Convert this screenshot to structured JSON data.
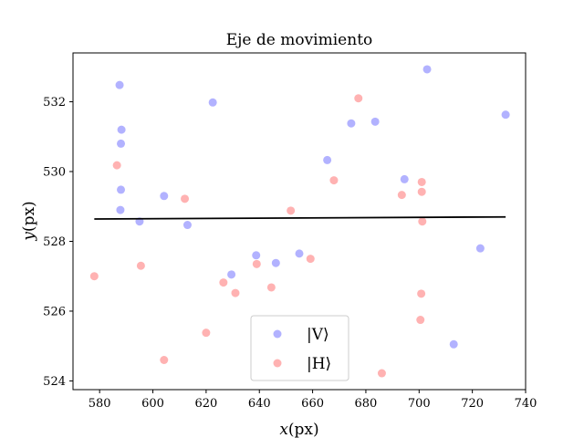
{
  "chart_data": {
    "type": "scatter",
    "title": "Eje de movimiento",
    "xlabel_var": "x",
    "xlabel_unit": "(px)",
    "ylabel_var": "y",
    "ylabel_unit": "(px)",
    "xlim": [
      570,
      740
    ],
    "ylim": [
      523.75,
      533.4
    ],
    "xticks": [
      580,
      600,
      620,
      640,
      660,
      680,
      700,
      720,
      740
    ],
    "yticks": [
      524,
      526,
      528,
      530,
      532
    ],
    "grid": false,
    "legend_position": "lower center",
    "series": [
      {
        "name": "|V⟩",
        "color": "#7f7fff",
        "points": [
          [
            587.5,
            532.48
          ],
          [
            587.8,
            528.9
          ],
          [
            588.0,
            529.48
          ],
          [
            588.0,
            530.8
          ],
          [
            588.2,
            531.2
          ],
          [
            595.0,
            528.57
          ],
          [
            604.2,
            529.3
          ],
          [
            613.0,
            528.47
          ],
          [
            622.5,
            531.98
          ],
          [
            629.5,
            527.05
          ],
          [
            638.8,
            527.6
          ],
          [
            646.2,
            527.38
          ],
          [
            655.0,
            527.65
          ],
          [
            665.5,
            530.33
          ],
          [
            674.5,
            531.38
          ],
          [
            683.5,
            531.43
          ],
          [
            694.5,
            529.78
          ],
          [
            703.0,
            532.93
          ],
          [
            713.0,
            525.05
          ],
          [
            723.0,
            527.8
          ],
          [
            732.5,
            531.63
          ]
        ]
      },
      {
        "name": "|H⟩",
        "color": "#ff7f7f",
        "points": [
          [
            578.0,
            527.0
          ],
          [
            586.5,
            530.18
          ],
          [
            595.5,
            527.3
          ],
          [
            604.2,
            524.6
          ],
          [
            612.0,
            529.22
          ],
          [
            620.0,
            525.38
          ],
          [
            626.5,
            526.82
          ],
          [
            631.0,
            526.52
          ],
          [
            639.0,
            527.35
          ],
          [
            644.5,
            526.68
          ],
          [
            651.8,
            528.88
          ],
          [
            659.2,
            527.5
          ],
          [
            668.0,
            529.75
          ],
          [
            677.2,
            532.1
          ],
          [
            686.0,
            524.22
          ],
          [
            693.5,
            529.33
          ],
          [
            700.5,
            525.75
          ],
          [
            700.8,
            526.5
          ],
          [
            701.0,
            529.42
          ],
          [
            701.0,
            529.7
          ],
          [
            701.2,
            528.57
          ]
        ]
      }
    ],
    "fit_line": {
      "color": "#000000",
      "points": [
        [
          578,
          528.64
        ],
        [
          732.5,
          528.7
        ]
      ]
    }
  }
}
